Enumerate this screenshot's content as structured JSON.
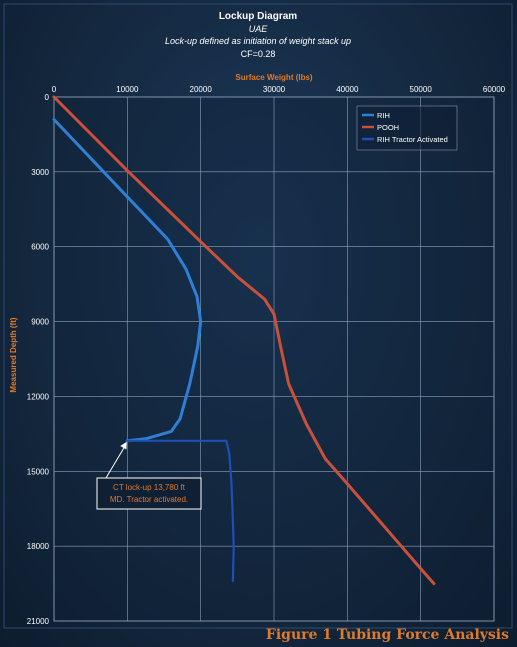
{
  "chart_data": {
    "type": "line",
    "title": "Lockup Diagram",
    "subtitle_lines": [
      "UAE",
      "Lock-up defined as initiation of weight stack up",
      "CF=0.28"
    ],
    "xlabel": "Surface Weight (lbs)",
    "ylabel": "Measured Depth (ft)",
    "xlim": [
      0,
      60000
    ],
    "ylim": [
      0,
      21000
    ],
    "y_inverted": true,
    "x_axis_position": "top",
    "x_ticks": [
      0,
      10000,
      20000,
      30000,
      40000,
      50000,
      60000
    ],
    "x_tick_labels": [
      "0",
      "10000",
      "20000",
      "30000",
      "40000",
      "50000",
      "60000"
    ],
    "y_ticks": [
      0,
      3000,
      6000,
      9000,
      12000,
      15000,
      18000,
      21000
    ],
    "y_tick_labels": [
      "0",
      "3000",
      "6000",
      "9000",
      "12000",
      "15000",
      "18000",
      "21000"
    ],
    "grid": true,
    "legend_position": "top-right",
    "series": [
      {
        "name": "RIH",
        "color": "#2f7fd6",
        "points": [
          [
            0,
            900
          ],
          [
            10000,
            4000
          ],
          [
            15500,
            5700
          ],
          [
            18000,
            6900
          ],
          [
            19500,
            8000
          ],
          [
            20000,
            9000
          ],
          [
            19600,
            10000
          ],
          [
            18500,
            11500
          ],
          [
            17200,
            12900
          ],
          [
            16000,
            13400
          ],
          [
            12500,
            13700
          ],
          [
            10000,
            13780
          ]
        ]
      },
      {
        "name": "POOH",
        "color": "#c9503a",
        "points": [
          [
            0,
            0
          ],
          [
            10000,
            2950
          ],
          [
            20000,
            5800
          ],
          [
            25000,
            7200
          ],
          [
            28700,
            8100
          ],
          [
            30000,
            8700
          ],
          [
            30900,
            10000
          ],
          [
            32000,
            11500
          ],
          [
            34400,
            13100
          ],
          [
            37000,
            14500
          ],
          [
            40000,
            15500
          ],
          [
            45000,
            17200
          ],
          [
            50000,
            18900
          ],
          [
            51800,
            19500
          ]
        ]
      },
      {
        "name": "RIH Tractor Activated",
        "color": "#1d4fb5",
        "points": [
          [
            10000,
            13780
          ],
          [
            23500,
            13780
          ],
          [
            23900,
            14300
          ],
          [
            24200,
            15500
          ],
          [
            24400,
            17000
          ],
          [
            24500,
            18000
          ],
          [
            24400,
            19400
          ]
        ]
      }
    ],
    "annotation": {
      "lines": [
        "CT lock-up 13,780 ft",
        "MD.  Tractor activated."
      ],
      "point": [
        10000,
        13780
      ]
    }
  },
  "caption": "Figure 1 Tubing Force Analysis"
}
